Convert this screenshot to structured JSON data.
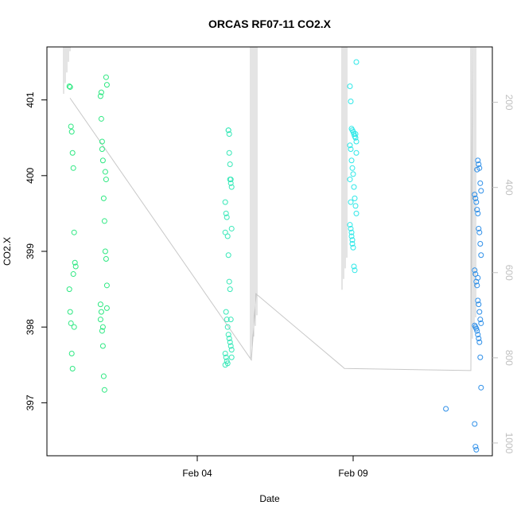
{
  "chart_data": {
    "type": "scatter",
    "title": "ORCAS RF07-11 CO2.X",
    "xlabel": "Date",
    "ylabel": "CO2.X",
    "x_ticks": [
      "Feb 04",
      "Feb 09"
    ],
    "y_ticks": [
      "397",
      "398",
      "399",
      "400",
      "401"
    ],
    "y2_ticks": [
      "200",
      "400",
      "600",
      "800",
      "1000"
    ],
    "ylim": [
      396.3,
      401.7
    ],
    "y2lim": [
      1030,
      70
    ],
    "grid": false,
    "legend": "none",
    "colors": {
      "group1": "#2ee882",
      "group2": "#38e8b8",
      "group3": "#2ee8e8",
      "group4": "#2e8fe8",
      "trace": "#c8c8c8",
      "axis": "#000000",
      "axis_right": "#c0c0c0"
    },
    "series": [
      {
        "x": [
          "Jan 31",
          "Jan 31",
          "Jan 31",
          "Jan 31",
          "Jan 31",
          "Jan 31",
          "Jan 31",
          "Jan 31",
          "Jan 31",
          "Jan 31",
          "Jan 31",
          "Jan 31",
          "Jan 31",
          "Jan 31",
          "Jan 31",
          "Jan 31",
          "Feb 01",
          "Feb 01",
          "Feb 01",
          "Feb 01",
          "Feb 01",
          "Feb 01",
          "Feb 01",
          "Feb 01",
          "Feb 01",
          "Feb 01",
          "Feb 01",
          "Feb 01",
          "Feb 01",
          "Feb 01",
          "Feb 01",
          "Feb 01",
          "Feb 01",
          "Feb 01",
          "Feb 01",
          "Feb 01",
          "Feb 01",
          "Feb 01",
          "Feb 01",
          "Feb 01"
        ],
        "y": [
          401.18,
          401.17,
          400.65,
          400.58,
          400.3,
          400.1,
          399.25,
          398.85,
          398.8,
          398.5,
          398.2,
          398.05,
          397.65,
          397.45,
          398.7,
          398.0,
          401.3,
          401.2,
          401.05,
          400.75,
          400.35,
          400.2,
          399.7,
          399.4,
          399.0,
          398.9,
          398.55,
          398.3,
          398.2,
          397.95,
          397.75,
          397.35,
          397.17,
          400.05,
          399.95,
          398.25,
          398.1,
          401.1,
          400.45,
          398.0
        ],
        "color_group": "group1"
      },
      {
        "x": [
          "Feb 05",
          "Feb 05",
          "Feb 05",
          "Feb 05",
          "Feb 05",
          "Feb 05",
          "Feb 05",
          "Feb 05",
          "Feb 05",
          "Feb 05",
          "Feb 05",
          "Feb 05",
          "Feb 05",
          "Feb 05",
          "Feb 05",
          "Feb 05",
          "Feb 05",
          "Feb 05",
          "Feb 05",
          "Feb 05",
          "Feb 05",
          "Feb 05",
          "Feb 05",
          "Feb 05",
          "Feb 05",
          "Feb 05",
          "Feb 05",
          "Feb 05",
          "Feb 05",
          "Feb 05",
          "Feb 05",
          "Feb 05",
          "Feb 05"
        ],
        "y": [
          400.6,
          400.55,
          399.95,
          399.9,
          399.3,
          399.25,
          398.2,
          398.1,
          398.0,
          397.9,
          397.85,
          397.8,
          397.75,
          397.7,
          397.65,
          397.6,
          397.55,
          397.52,
          400.6,
          400.3,
          400.15,
          399.95,
          399.85,
          399.65,
          399.5,
          399.45,
          399.2,
          398.95,
          398.6,
          398.5,
          398.1,
          397.6,
          397.5
        ],
        "color_group": "group2"
      },
      {
        "x": [
          "Feb 09",
          "Feb 09",
          "Feb 09",
          "Feb 09",
          "Feb 09",
          "Feb 09",
          "Feb 09",
          "Feb 09",
          "Feb 09",
          "Feb 09",
          "Feb 09",
          "Feb 09",
          "Feb 09",
          "Feb 09",
          "Feb 09",
          "Feb 09",
          "Feb 09",
          "Feb 09",
          "Feb 09",
          "Feb 09",
          "Feb 09",
          "Feb 09",
          "Feb 09",
          "Feb 09",
          "Feb 09",
          "Feb 09",
          "Feb 09",
          "Feb 09",
          "Feb 09",
          "Feb 09",
          "Feb 09",
          "Feb 09"
        ],
        "y": [
          401.5,
          401.18,
          400.98,
          400.62,
          400.6,
          400.58,
          400.55,
          400.52,
          400.5,
          400.45,
          400.4,
          400.35,
          400.2,
          400.1,
          400.02,
          399.85,
          399.7,
          399.6,
          399.5,
          399.35,
          399.3,
          399.2,
          399.1,
          399.05,
          398.8,
          398.75,
          400.55,
          400.3,
          399.95,
          399.65,
          399.25,
          399.15
        ],
        "color_group": "group3"
      },
      {
        "x": [
          "Feb 12",
          "Feb 13",
          "Feb 13",
          "Feb 13",
          "Feb 13",
          "Feb 13",
          "Feb 13",
          "Feb 13",
          "Feb 13",
          "Feb 13",
          "Feb 13",
          "Feb 13",
          "Feb 13",
          "Feb 13",
          "Feb 13",
          "Feb 13",
          "Feb 13",
          "Feb 13",
          "Feb 13",
          "Feb 13",
          "Feb 13",
          "Feb 13",
          "Feb 13",
          "Feb 13",
          "Feb 13",
          "Feb 13",
          "Feb 13",
          "Feb 13",
          "Feb 13",
          "Feb 13",
          "Feb 13",
          "Feb 13",
          "Feb 13",
          "Feb 13",
          "Feb 13",
          "Feb 13",
          "Feb 13",
          "Feb 13"
        ],
        "y": [
          396.92,
          400.2,
          400.15,
          400.1,
          399.9,
          399.8,
          399.75,
          399.7,
          399.65,
          399.55,
          399.5,
          399.3,
          399.25,
          399.1,
          398.95,
          398.75,
          398.7,
          398.6,
          398.55,
          398.35,
          398.3,
          398.2,
          398.1,
          398.05,
          398.02,
          398.0,
          397.98,
          397.95,
          397.9,
          397.85,
          397.8,
          397.6,
          397.2,
          396.72,
          396.42,
          396.38,
          400.08,
          398.65
        ],
        "color_group": "group4"
      }
    ]
  }
}
